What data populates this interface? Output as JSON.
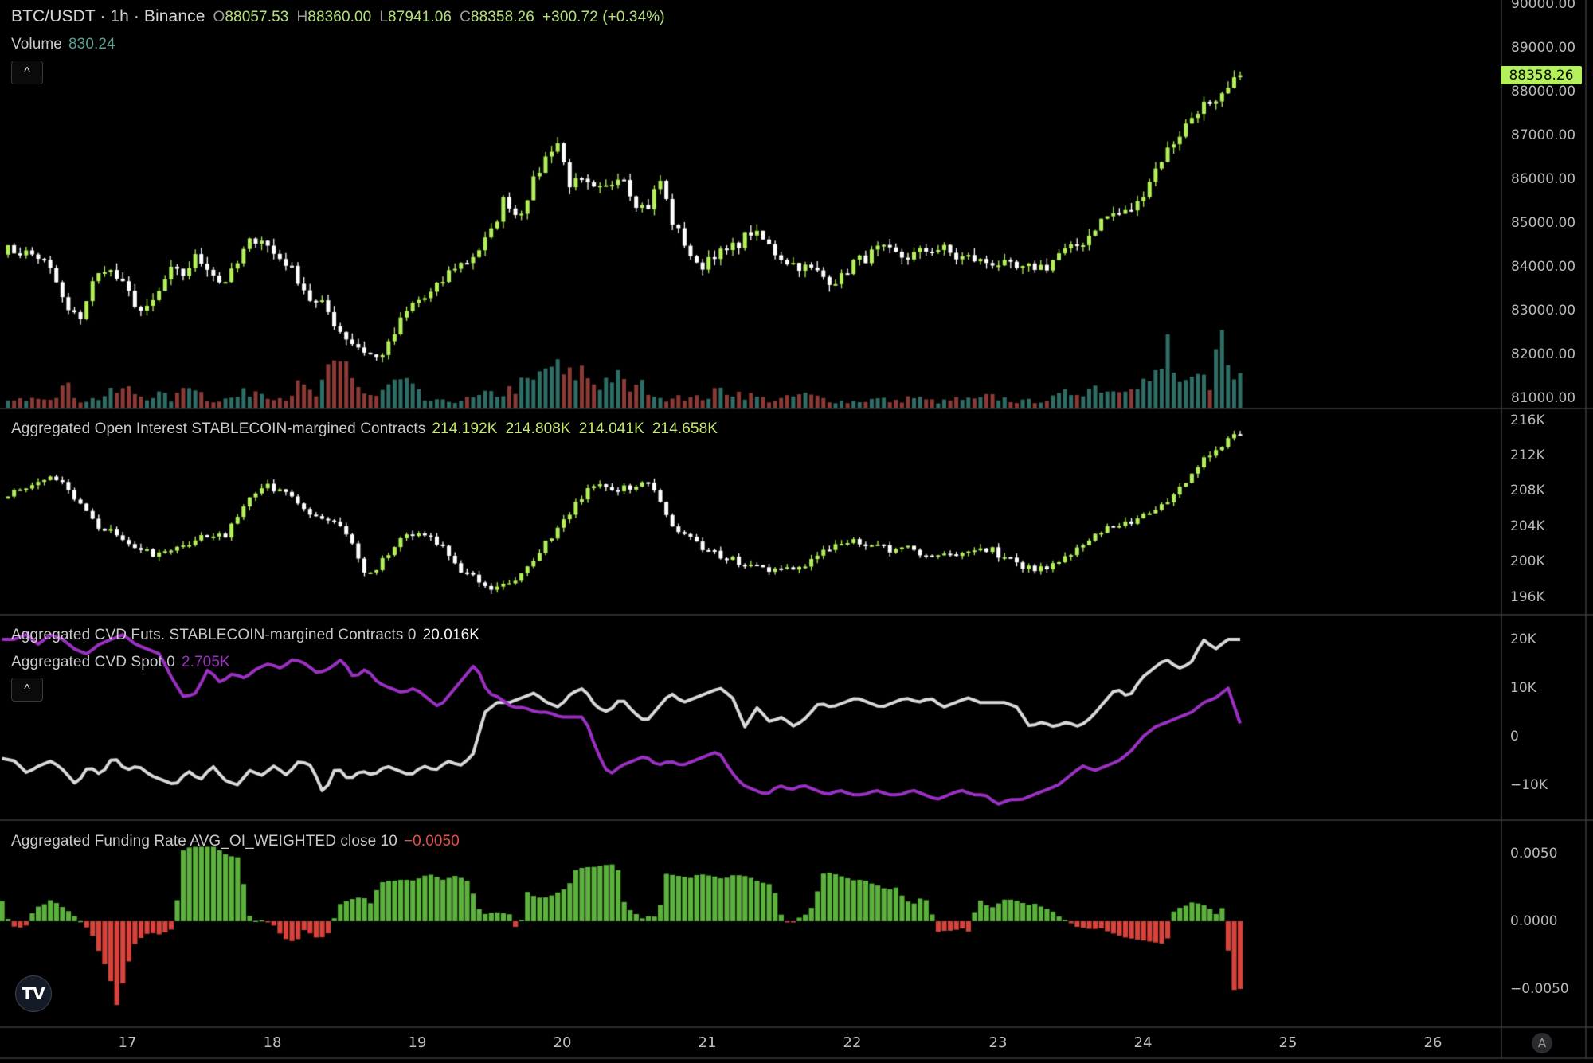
{
  "header": {
    "symbol": "BTC/USDT · 1h · Binance",
    "open_label": "O",
    "open": "88057.53",
    "high_label": "H",
    "high": "88360.00",
    "low_label": "L",
    "low": "87941.06",
    "close_label": "C",
    "close": "88358.26",
    "change": "+300.72 (+0.34%)",
    "volume_label": "Volume",
    "volume_value": "830.24",
    "collapse_icon": "^"
  },
  "panes": {
    "main": {
      "last_price": "88358.26",
      "axis_ticks": [
        "90000.00",
        "89000.00",
        "88000.00",
        "87000.00",
        "86000.00",
        "85000.00",
        "84000.00",
        "83000.00",
        "82000.00",
        "81000.00"
      ]
    },
    "open_interest": {
      "title": "Aggregated Open Interest STABLECOIN-margined Contracts",
      "values": [
        "214.192K",
        "214.808K",
        "214.041K",
        "214.658K"
      ],
      "axis_ticks": [
        "216K",
        "212K",
        "208K",
        "204K",
        "200K",
        "196K"
      ]
    },
    "cvd": {
      "title_futs": "Aggregated CVD Futs. STABLECOIN-margined Contracts 0",
      "value_futs": "20.016K",
      "title_spot": "Aggregated CVD Spot 0",
      "value_spot": "2.705K",
      "collapse_icon": "^",
      "axis_ticks": [
        "20K",
        "10K",
        "0",
        "−10K"
      ]
    },
    "funding": {
      "title": "Aggregated Funding Rate AVG_OI_WEIGHTED close 10",
      "value": "−0.0050",
      "axis_ticks": [
        "0.0050",
        "0.0000",
        "−0.0050"
      ]
    }
  },
  "time_axis": [
    "17",
    "18",
    "19",
    "20",
    "21",
    "22",
    "23",
    "24",
    "25",
    "26"
  ],
  "logo_text": "TV",
  "auto_scale_label": "A",
  "colors": {
    "up": "#b3f05a",
    "down": "#ffffff",
    "vol_up": "#2f6e66",
    "vol_down": "#8c3a36",
    "cvd_futs": "#d9d9d9",
    "cvd_spot": "#9b30c2",
    "fund_pos": "#5cb23c",
    "fund_neg": "#d8433b",
    "grid": "#2e2e32",
    "header_values": "#b3e07a",
    "oi_values": "#c4e870",
    "fund_value": "#e0524a",
    "spot_value": "#9b30c2",
    "volume_value": "#5a9f95"
  },
  "chart_data": [
    {
      "type": "candlestick",
      "title": "BTC/USDT · 1h · Binance",
      "x_start": "16 ~03:00",
      "interval": "1h",
      "bars": 206,
      "ylim": [
        81000,
        90000
      ],
      "price_anchors": [
        84400,
        84350,
        84300,
        84200,
        83800,
        83000,
        82800,
        83600,
        84000,
        83700,
        83300,
        82900,
        83300,
        83900,
        83800,
        84200,
        84000,
        83600,
        83900,
        84500,
        84700,
        84300,
        84100,
        83700,
        83200,
        83100,
        82600,
        82300,
        82100,
        81900,
        82200,
        82800,
        83200,
        83300,
        83600,
        84000,
        84100,
        84400,
        84800,
        85600,
        85100,
        85800,
        86400,
        86900,
        85900,
        85900,
        85700,
        85800,
        86200,
        85500,
        85300,
        86000,
        85000,
        84500,
        83900,
        84300,
        84300,
        84500,
        84800,
        84600,
        84300,
        84100,
        84000,
        83900,
        83700,
        83700,
        84100,
        84200,
        84400,
        84300,
        84200,
        84300,
        84400,
        84400,
        84200,
        84200,
        84100,
        84100,
        84000,
        83900,
        84000,
        84000,
        84300,
        84400,
        84600,
        85000,
        85200,
        85200,
        85400,
        86000,
        86500,
        86900,
        87300,
        87700,
        87600,
        88000,
        88358
      ],
      "volume_anchors": [
        10,
        8,
        20,
        15,
        30,
        10,
        12,
        20,
        25,
        15,
        18,
        10,
        40,
        12,
        10,
        15,
        25,
        20,
        12,
        30,
        15,
        50,
        60,
        20,
        15,
        35,
        30,
        10,
        8,
        10,
        12,
        18,
        20,
        30,
        35,
        60,
        40,
        50,
        30,
        45,
        25,
        30,
        10,
        20,
        12,
        15,
        25,
        20,
        15,
        10,
        12,
        18,
        14,
        10,
        8,
        10,
        12,
        8,
        15,
        10,
        8,
        12,
        10,
        15,
        12,
        8,
        10,
        12,
        20,
        25,
        30,
        22,
        40,
        35,
        45,
        40,
        30,
        60,
        90,
        40
      ],
      "volume_peak": 830.24
    },
    {
      "type": "candlestick",
      "title": "Aggregated Open Interest STABLECOIN-margined Contracts",
      "ylim": [
        196,
        216
      ],
      "unit": "K",
      "oi_anchors": [
        207.5,
        208,
        208.5,
        209,
        209.5,
        208,
        205.5,
        204,
        203.5,
        202,
        201,
        201,
        201.5,
        202,
        202.5,
        203,
        203,
        205,
        208,
        208.5,
        208,
        207,
        205,
        205,
        204,
        203,
        199,
        199.5,
        201,
        203,
        203.5,
        202.5,
        201,
        199,
        198,
        197,
        197.5,
        198,
        200,
        202,
        204,
        206,
        208,
        209,
        208,
        208.5,
        209,
        208,
        204,
        203,
        202,
        201,
        200.5,
        200,
        199.5,
        199,
        199,
        199.5,
        200,
        201,
        202,
        202.5,
        202,
        201.5,
        201.5,
        201.5,
        201,
        201,
        200.5,
        201,
        201,
        201.5,
        200.5,
        200,
        199,
        199.5,
        200,
        201,
        202,
        203.5,
        204.5,
        204,
        205,
        206,
        207,
        209,
        211,
        212,
        213.5,
        214.658
      ]
    },
    {
      "type": "line",
      "title": "Aggregated CVD",
      "ylim": [
        -15,
        22
      ],
      "unit": "K",
      "series": [
        {
          "name": "Aggregated CVD Futs. STABLECOIN-margined Contracts 0",
          "values": [
            -4.5,
            -5,
            -7.5,
            -6,
            -5,
            -7,
            -10,
            -6,
            -8,
            -4,
            -7,
            -6,
            -8,
            -9,
            -10,
            -7,
            -9,
            -6,
            -9,
            -10,
            -7,
            -8,
            -6,
            -8,
            -5,
            -6,
            -12,
            -6,
            -9,
            -7,
            -8,
            -6,
            -7,
            -8,
            -6,
            -7,
            -5,
            -6,
            -4,
            5,
            7,
            7,
            8,
            9,
            7,
            6,
            9,
            10,
            6,
            5,
            8,
            5,
            3,
            6,
            9,
            7,
            8,
            9,
            10,
            8,
            2,
            6,
            3,
            4,
            2,
            4,
            7,
            6,
            7,
            8,
            7,
            6,
            7,
            8,
            7,
            8,
            6,
            7,
            8,
            7,
            7,
            7,
            6,
            2,
            3,
            2,
            3,
            2,
            4,
            7,
            10,
            8,
            12,
            14,
            16,
            14,
            15,
            20,
            18,
            20,
            20.016
          ]
        },
        {
          "name": "Aggregated CVD Spot 0",
          "values": [
            20,
            20,
            21,
            19,
            21,
            20,
            18,
            17,
            19,
            20,
            21,
            19,
            18,
            17,
            12,
            8,
            9,
            14,
            11,
            13,
            12,
            14,
            15,
            14,
            16,
            15,
            13,
            14,
            16,
            12,
            14,
            11,
            10,
            9,
            10,
            8,
            6,
            9,
            12,
            15,
            9,
            8,
            6,
            6,
            5,
            5,
            4,
            4,
            4,
            -3,
            -8,
            -6,
            -5,
            -4,
            -6,
            -5,
            -6,
            -5,
            -4,
            -3,
            -7,
            -10,
            -11,
            -12,
            -10,
            -11,
            -10,
            -11,
            -12,
            -11,
            -12,
            -12,
            -11,
            -12,
            -12,
            -11,
            -12,
            -13,
            -12,
            -11,
            -12,
            -12,
            -14,
            -13,
            -13,
            -12,
            -11,
            -10,
            -8,
            -6,
            -7,
            -6,
            -5,
            -3,
            0,
            2,
            3,
            4,
            5,
            7,
            8,
            10,
            2.705
          ]
        }
      ]
    },
    {
      "type": "bar",
      "title": "Aggregated Funding Rate AVG_OI_WEIGHTED close 10",
      "ylim": [
        -0.006,
        0.0055
      ],
      "values": [
        0.0015,
        -0.0003,
        -0.0005,
        -0.0003,
        0.001,
        0.0012,
        0.0016,
        0.0012,
        0.0008,
        0.0003,
        -0.0002,
        -0.001,
        -0.0025,
        -0.0038,
        -0.0062,
        -0.004,
        -0.0018,
        -0.0012,
        -0.0008,
        -0.001,
        -0.0008,
        -0.0005,
        0.0052,
        0.0055,
        0.0055,
        0.0055,
        0.0055,
        0.005,
        0.0048,
        0.0047,
        0.0005,
        0,
        0.0001,
        -0.0002,
        -0.001,
        -0.0015,
        -0.0014,
        -0.0005,
        -0.0012,
        -0.0012,
        -0.0008,
        0.0012,
        0.0015,
        0.0017,
        0.0018,
        0.0013,
        0.0028,
        0.003,
        0.003,
        0.0031,
        0.003,
        0.0032,
        0.0035,
        0.0033,
        0.003,
        0.0034,
        0.0032,
        0.0029,
        0.001,
        0.0005,
        0.0007,
        0.0006,
        0.0005,
        -0.001,
        0.0022,
        0.0018,
        0.0017,
        0.0019,
        0.0022,
        0.0025,
        0.0038,
        0.004,
        0.004,
        0.0041,
        0.0042,
        0.0042,
        0.001,
        0.0007,
        0.0002,
        0.0004,
        0.0003,
        0.0035,
        0.0034,
        0.0033,
        0.0032,
        0.0035,
        0.0034,
        0.0033,
        0.0031,
        0.0034,
        0.0034,
        0.0033,
        0.003,
        0.0028,
        0.0027,
        0.0005,
        -0.0002,
        0.0002,
        0.0005,
        0.0012,
        0.0035,
        0.0036,
        0.0034,
        0.0032,
        0.003,
        0.0031,
        0.0028,
        0.0026,
        0.0023,
        0.0025,
        0.0017,
        0.0012,
        0.0017,
        0.0015,
        -0.0008,
        -0.0007,
        -0.0007,
        -0.0005,
        -0.0008,
        0.0017,
        0.0012,
        0.001,
        0.0016,
        0.0016,
        0.0015,
        0.0012,
        0.0013,
        0.001,
        0.0008,
        0.0003,
        0,
        -0.0004,
        -0.0005,
        -0.0006,
        -0.0005,
        -0.0008,
        -0.001,
        -0.0012,
        -0.0013,
        -0.0014,
        -0.0015,
        -0.0016,
        -0.0017,
        0.001,
        0.001,
        0.0014,
        0.0013,
        0.0011,
        0.0005,
        0.0011,
        -0.0051,
        -0.005
      ]
    }
  ]
}
